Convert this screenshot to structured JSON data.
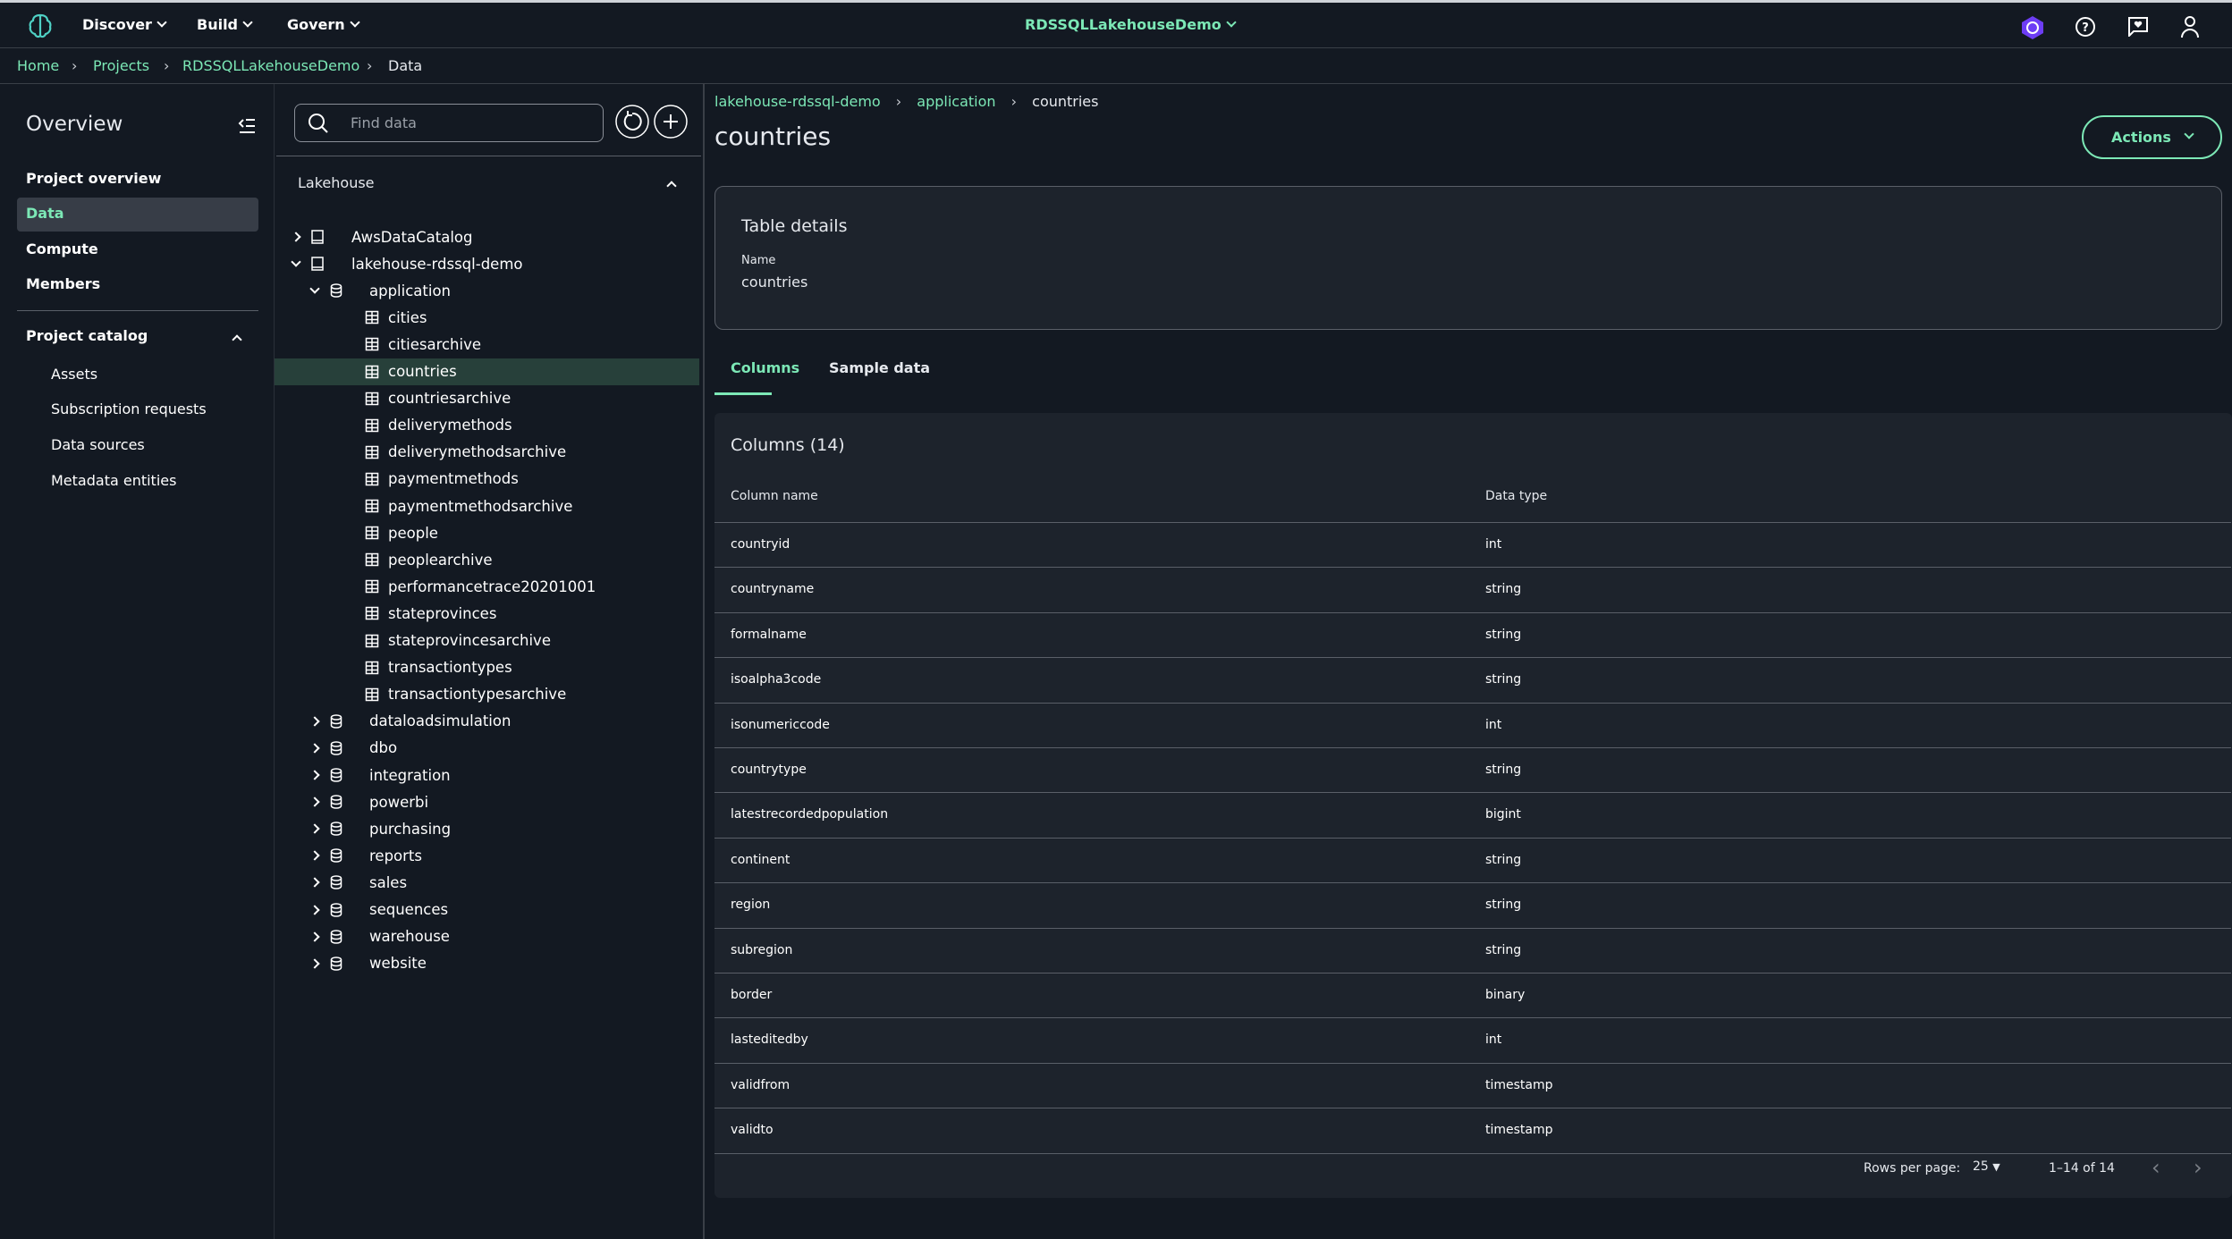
{
  "topnav": {
    "menus": [
      "Discover",
      "Build",
      "Govern"
    ],
    "project": "RDSSQLLakehouseDemo",
    "icons": [
      "amazon-q-icon",
      "help-icon",
      "feedback-icon",
      "user-icon"
    ]
  },
  "breadcrumb": [
    "Home",
    "Projects",
    "RDSSQLLakehouseDemo",
    "Data"
  ],
  "sidebar": {
    "title": "Overview",
    "items": [
      "Project overview",
      "Data",
      "Compute",
      "Members"
    ],
    "active": "Data",
    "catalog_title": "Project catalog",
    "catalog_items": [
      "Assets",
      "Subscription requests",
      "Data sources",
      "Metadata entities"
    ]
  },
  "tree": {
    "search_placeholder": "Find data",
    "section": "Lakehouse",
    "catalogs": [
      "AwsDataCatalog",
      "lakehouse-rdssql-demo"
    ],
    "expanded_db": "application",
    "tables": [
      "cities",
      "citiesarchive",
      "countries",
      "countriesarchive",
      "deliverymethods",
      "deliverymethodsarchive",
      "paymentmethods",
      "paymentmethodsarchive",
      "people",
      "peoplearchive",
      "performancetrace20201001",
      "stateprovinces",
      "stateprovincesarchive",
      "transactiontypes",
      "transactiontypesarchive"
    ],
    "selected": "countries",
    "databases": [
      "dataloadsimulation",
      "dbo",
      "integration",
      "powerbi",
      "purchasing",
      "reports",
      "sales",
      "sequences",
      "warehouse",
      "website"
    ]
  },
  "main": {
    "breadcrumb": [
      "lakehouse-rdssql-demo",
      "application",
      "countries"
    ],
    "title": "countries",
    "actions": "Actions",
    "details": {
      "title": "Table details",
      "name_label": "Name",
      "name_value": "countries"
    },
    "tabs": [
      "Columns",
      "Sample data"
    ],
    "active_tab": "Columns",
    "columns": {
      "title": "Columns (14)",
      "headers": [
        "Column name",
        "Data type"
      ],
      "rows": [
        [
          "countryid",
          "int"
        ],
        [
          "countryname",
          "string"
        ],
        [
          "formalname",
          "string"
        ],
        [
          "isoalpha3code",
          "string"
        ],
        [
          "isonumericcode",
          "int"
        ],
        [
          "countrytype",
          "string"
        ],
        [
          "latestrecordedpopulation",
          "bigint"
        ],
        [
          "continent",
          "string"
        ],
        [
          "region",
          "string"
        ],
        [
          "subregion",
          "string"
        ],
        [
          "border",
          "binary"
        ],
        [
          "lasteditedby",
          "int"
        ],
        [
          "validfrom",
          "timestamp"
        ],
        [
          "validto",
          "timestamp"
        ]
      ]
    },
    "pagination": {
      "rows_label": "Rows per page:",
      "rows_value": "25",
      "range": "1–14 of 14"
    }
  },
  "colors": {
    "accent": "#7ce8b6",
    "background": "#131922",
    "panel": "#1d232c",
    "selected_row": "#27403a"
  }
}
